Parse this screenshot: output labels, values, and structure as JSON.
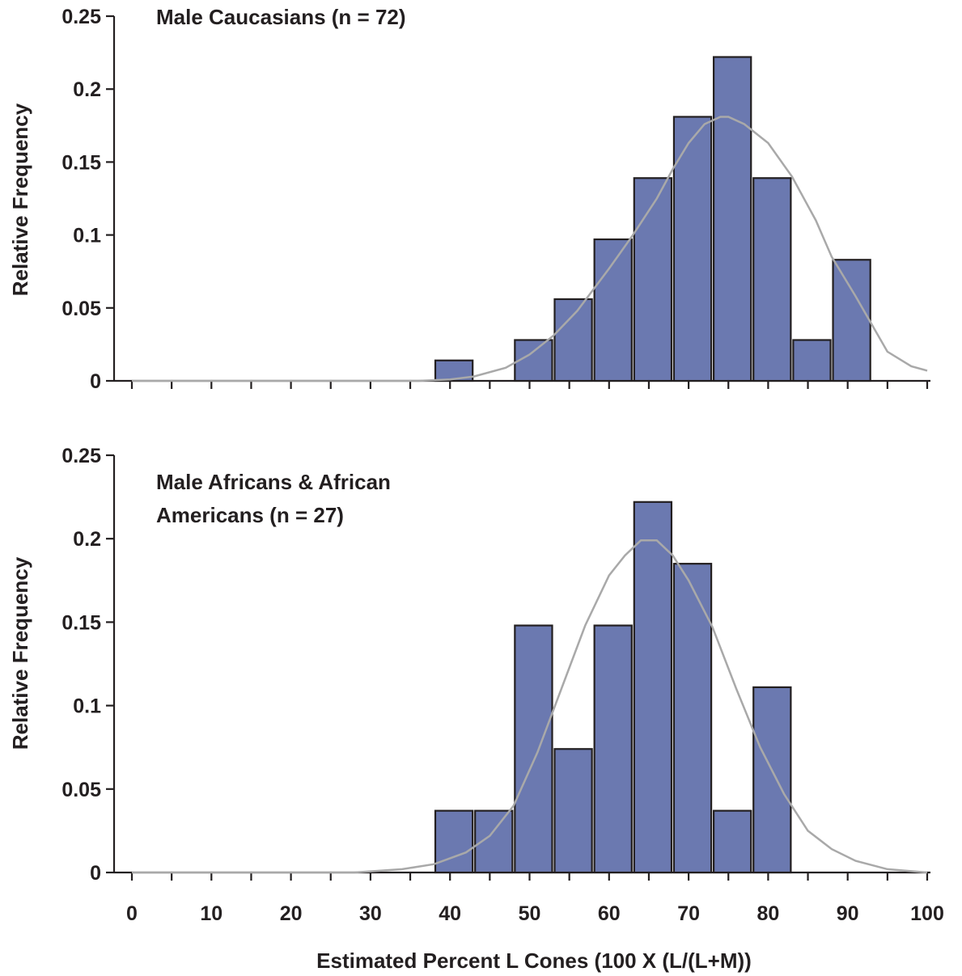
{
  "chart_data": [
    {
      "type": "bar",
      "title_lines": [
        "Male Caucasians  (n = 72)"
      ],
      "ylabel": "Relative Frequency",
      "xlabel": "",
      "ylim": [
        0,
        0.25
      ],
      "yticks": [
        "0",
        "0.05",
        "0.1",
        "0.15",
        "0.2",
        "0.25"
      ],
      "xlim": [
        0,
        100
      ],
      "bin_width": 5,
      "bins": [
        {
          "start": 38,
          "value": 0.014
        },
        {
          "start": 48,
          "value": 0.028
        },
        {
          "start": 53,
          "value": 0.056
        },
        {
          "start": 58,
          "value": 0.097
        },
        {
          "start": 63,
          "value": 0.139
        },
        {
          "start": 68,
          "value": 0.181
        },
        {
          "start": 73,
          "value": 0.222
        },
        {
          "start": 78,
          "value": 0.139
        },
        {
          "start": 83,
          "value": 0.028
        },
        {
          "start": 88,
          "value": 0.083
        }
      ],
      "fit_curve": {
        "x": [
          0,
          20,
          36,
          40,
          43,
          47,
          50,
          53,
          56,
          60,
          63,
          66,
          68,
          70,
          72,
          74,
          75,
          77,
          80,
          83,
          86,
          88,
          91,
          95,
          98,
          100
        ],
        "y": [
          0,
          0,
          0,
          0.001,
          0.003,
          0.009,
          0.018,
          0.031,
          0.048,
          0.077,
          0.1,
          0.125,
          0.145,
          0.163,
          0.176,
          0.181,
          0.181,
          0.176,
          0.163,
          0.14,
          0.11,
          0.085,
          0.058,
          0.02,
          0.01,
          0.007
        ]
      }
    },
    {
      "type": "bar",
      "title_lines": [
        "Male Africans & African",
        "Americans (n = 27)"
      ],
      "ylabel": "Relative Frequency",
      "xlabel": "Estimated Percent L Cones (100 X (L/(L+M))",
      "ylim": [
        0,
        0.25
      ],
      "yticks": [
        "0",
        "0.05",
        "0.1",
        "0.15",
        "0.2",
        "0.25"
      ],
      "xlim": [
        0,
        100
      ],
      "xticks": [
        "0",
        "10",
        "20",
        "30",
        "40",
        "50",
        "60",
        "70",
        "80",
        "90",
        "100"
      ],
      "bin_width": 5,
      "bins": [
        {
          "start": 38,
          "value": 0.037
        },
        {
          "start": 43,
          "value": 0.037
        },
        {
          "start": 48,
          "value": 0.148
        },
        {
          "start": 53,
          "value": 0.074
        },
        {
          "start": 58,
          "value": 0.148
        },
        {
          "start": 63,
          "value": 0.222
        },
        {
          "start": 68,
          "value": 0.185
        },
        {
          "start": 73,
          "value": 0.037
        },
        {
          "start": 78,
          "value": 0.111
        }
      ],
      "fit_curve": {
        "x": [
          0,
          28,
          34,
          38,
          42,
          45,
          48,
          51,
          54,
          57,
          60,
          62,
          64,
          66,
          68,
          70,
          73,
          76,
          79,
          82,
          85,
          88,
          91,
          95,
          100
        ],
        "y": [
          0,
          0,
          0.002,
          0.005,
          0.012,
          0.022,
          0.04,
          0.072,
          0.11,
          0.148,
          0.178,
          0.19,
          0.199,
          0.199,
          0.19,
          0.175,
          0.147,
          0.11,
          0.075,
          0.047,
          0.025,
          0.014,
          0.007,
          0.002,
          0
        ]
      }
    }
  ]
}
